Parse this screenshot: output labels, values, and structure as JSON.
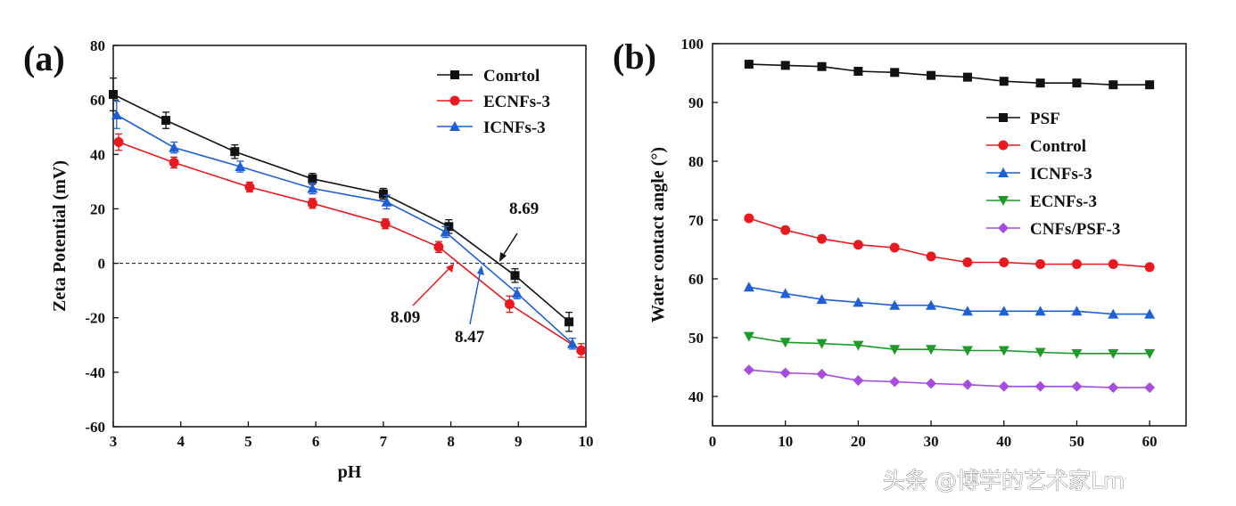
{
  "watermark": "头条 @博学的艺术家Lm",
  "chart_data": [
    {
      "panel": "(a)",
      "type": "line",
      "xlabel": "pH",
      "ylabel": "Zeta Potential (mV)",
      "xlim": [
        3,
        10
      ],
      "ylim": [
        -60,
        80
      ],
      "xticks": [
        "3",
        "4",
        "5",
        "6",
        "7",
        "8",
        "9",
        "10"
      ],
      "yticks": [
        "-60",
        "-40",
        "-20",
        "0",
        "20",
        "40",
        "60",
        "80"
      ],
      "legend_position": "top-right",
      "reference_line": 0,
      "series": [
        {
          "name": "Conrtol",
          "color": "#111111",
          "marker": "square",
          "x": [
            3.0,
            3.78,
            4.8,
            5.95,
            7.0,
            7.97,
            8.95,
            9.75
          ],
          "y": [
            62,
            52.5,
            41,
            31,
            25.5,
            13.5,
            -4.5,
            -21.5
          ],
          "err": [
            6,
            3,
            2.5,
            2,
            2,
            2.5,
            2.5,
            3.5
          ]
        },
        {
          "name": "ECNFs-3",
          "color": "#e8191f",
          "marker": "circle",
          "x": [
            3.08,
            3.9,
            5.02,
            5.95,
            7.03,
            7.82,
            8.87,
            9.93
          ],
          "y": [
            44.5,
            37,
            28,
            22,
            14.5,
            6,
            -15,
            -32
          ],
          "err": [
            3,
            2,
            1.8,
            1.8,
            1.8,
            2,
            3,
            2.5
          ]
        },
        {
          "name": "ICNFs-3",
          "color": "#1f5fd6",
          "marker": "triangle",
          "x": [
            3.05,
            3.9,
            4.88,
            5.95,
            7.05,
            7.92,
            8.98,
            9.8
          ],
          "y": [
            54.5,
            42.5,
            35.5,
            27.5,
            22.5,
            11.5,
            -11,
            -29.5
          ],
          "err": [
            5,
            2,
            2,
            2,
            2.5,
            2,
            2,
            2
          ]
        }
      ],
      "annotations": [
        "8.69",
        "8.09",
        "8.47"
      ]
    },
    {
      "panel": "(b)",
      "type": "line",
      "xlabel": "",
      "ylabel": "Water contact angle (°)",
      "xlim": [
        0,
        65
      ],
      "ylim": [
        35,
        100
      ],
      "xticks": [
        "0",
        "10",
        "20",
        "30",
        "40",
        "50",
        "60"
      ],
      "yticks": [
        "40",
        "50",
        "60",
        "70",
        "80",
        "90",
        "100"
      ],
      "legend_position": "center-right",
      "x": [
        5,
        10,
        15,
        20,
        25,
        30,
        35,
        40,
        45,
        50,
        55,
        60
      ],
      "series": [
        {
          "name": "PSF",
          "color": "#111111",
          "marker": "square",
          "values": [
            96.5,
            96.3,
            96.1,
            95.3,
            95.1,
            94.6,
            94.3,
            93.6,
            93.3,
            93.3,
            93.0,
            93.0
          ]
        },
        {
          "name": "Control",
          "color": "#e8191f",
          "marker": "circle",
          "values": [
            70.3,
            68.3,
            66.8,
            65.8,
            65.3,
            63.8,
            62.8,
            62.8,
            62.5,
            62.5,
            62.5,
            62.0
          ]
        },
        {
          "name": "ICNFs-3",
          "color": "#1f5fd6",
          "marker": "triangle",
          "values": [
            58.6,
            57.5,
            56.5,
            56.0,
            55.5,
            55.5,
            54.5,
            54.5,
            54.5,
            54.5,
            54.0,
            54.0
          ]
        },
        {
          "name": "ECNFs-3",
          "color": "#1e9a2a",
          "marker": "triangle-down",
          "values": [
            50.2,
            49.2,
            49.0,
            48.7,
            48.0,
            48.0,
            47.8,
            47.8,
            47.5,
            47.3,
            47.3,
            47.3
          ]
        },
        {
          "name": "CNFs/PSF-3",
          "color": "#a64de0",
          "marker": "diamond",
          "values": [
            44.5,
            44.0,
            43.8,
            42.7,
            42.5,
            42.2,
            42.0,
            41.7,
            41.7,
            41.7,
            41.5,
            41.5
          ]
        }
      ]
    }
  ]
}
